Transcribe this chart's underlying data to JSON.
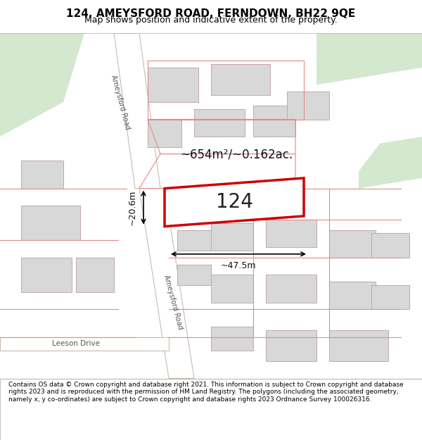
{
  "title": "124, AMEYSFORD ROAD, FERNDOWN, BH22 9QE",
  "subtitle": "Map shows position and indicative extent of the property.",
  "footer": "Contains OS data © Crown copyright and database right 2021. This information is subject to Crown copyright and database rights 2023 and is reproduced with the permission of HM Land Registry. The polygons (including the associated geometry, namely x, y co-ordinates) are subject to Crown copyright and database rights 2023 Ordnance Survey 100026316.",
  "background_color": "#f0f0eb",
  "map_background": "#f5f5f0",
  "road_color": "#ffffff",
  "road_border_color": "#d4c8b8",
  "building_fill": "#d8d8d8",
  "building_edge": "#c0a8a8",
  "green_area_color": "#d4e8d0",
  "highlight_fill": "#ffffff",
  "highlight_edge": "#cc0000",
  "highlight_lw": 2.5,
  "measurement_color": "#000000",
  "label_124": "124",
  "area_label": "~654m²/~0.162ac.",
  "width_label": "~47.5m",
  "height_label": "~20.6m",
  "road_label1": "Ameysford Road",
  "road_label2": "Ameysford Road",
  "street_label": "Leeson Drive"
}
